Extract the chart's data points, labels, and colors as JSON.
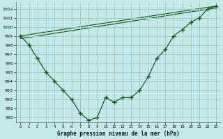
{
  "title": "Graphe pression niveau de la mer (hPa)",
  "bg_color": "#c5e8e8",
  "grid_color": "#9ecece",
  "line_color": "#1a5c1a",
  "xlim": [
    -0.5,
    23.5
  ],
  "ylim": [
    989.5,
    1002.7
  ],
  "yticks": [
    990,
    991,
    992,
    993,
    994,
    995,
    996,
    997,
    998,
    999,
    1000,
    1001,
    1002
  ],
  "xticks": [
    0,
    1,
    2,
    3,
    4,
    5,
    6,
    7,
    8,
    9,
    10,
    11,
    12,
    13,
    14,
    15,
    16,
    17,
    18,
    19,
    20,
    21,
    22,
    23
  ],
  "main_x": [
    0,
    1,
    2,
    3,
    4,
    5,
    6,
    7,
    8,
    9,
    10,
    11,
    12,
    13,
    14,
    15,
    16,
    17,
    18,
    19,
    20,
    21,
    22,
    23
  ],
  "main_y": [
    999.0,
    998.0,
    996.5,
    995.0,
    994.0,
    993.0,
    992.0,
    990.5,
    989.7,
    990.0,
    992.2,
    991.7,
    992.2,
    992.2,
    993.0,
    994.5,
    996.5,
    997.5,
    999.0,
    999.7,
    1000.5,
    1001.0,
    1002.0,
    1002.3
  ],
  "line2_x": [
    0,
    23
  ],
  "line2_y": [
    999.0,
    1002.3
  ],
  "line3_x": [
    0,
    23
  ],
  "line3_y": [
    998.7,
    1002.1
  ]
}
